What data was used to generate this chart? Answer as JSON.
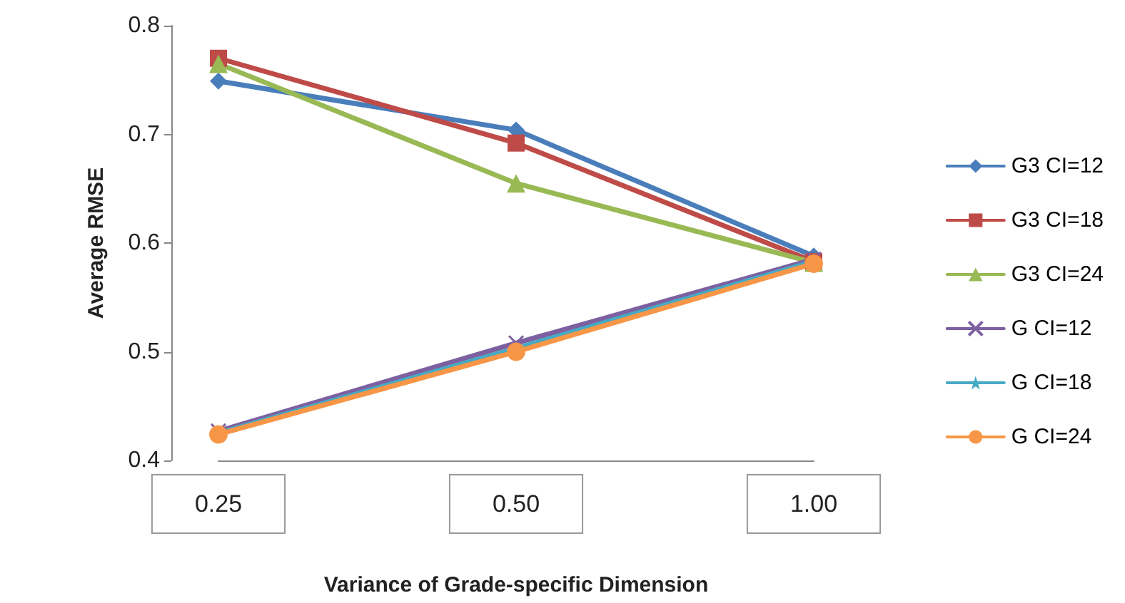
{
  "chart_data": {
    "type": "line",
    "xlabel": "Variance of Grade-specific Dimension",
    "ylabel": "Average RMSE",
    "categories": [
      "0.25",
      "0.50",
      "1.00"
    ],
    "ylim": [
      0.4,
      0.8
    ],
    "yticks": [
      0.4,
      0.5,
      0.6,
      0.7,
      0.8
    ],
    "grid": false,
    "legend": "right",
    "line_style": "solid",
    "series": [
      {
        "name": "G3 CI=12",
        "color": "#4a7ebb",
        "marker": "diamond",
        "values": [
          0.749,
          0.704,
          0.588
        ]
      },
      {
        "name": "G3 CI=18",
        "color": "#be4b48",
        "marker": "square",
        "values": [
          0.77,
          0.692,
          0.583
        ]
      },
      {
        "name": "G3 CI=24",
        "color": "#98b954",
        "marker": "triangle",
        "values": [
          0.765,
          0.655,
          0.582
        ]
      },
      {
        "name": "G CI=12",
        "color": "#7d60a0",
        "marker": "cross",
        "values": [
          0.427,
          0.508,
          0.585
        ]
      },
      {
        "name": "G CI=18",
        "color": "#46aac5",
        "marker": "star",
        "values": [
          0.425,
          0.503,
          0.583
        ]
      },
      {
        "name": "G CI=24",
        "color": "#f79646",
        "marker": "circle",
        "values": [
          0.424,
          0.5,
          0.581
        ]
      }
    ]
  }
}
